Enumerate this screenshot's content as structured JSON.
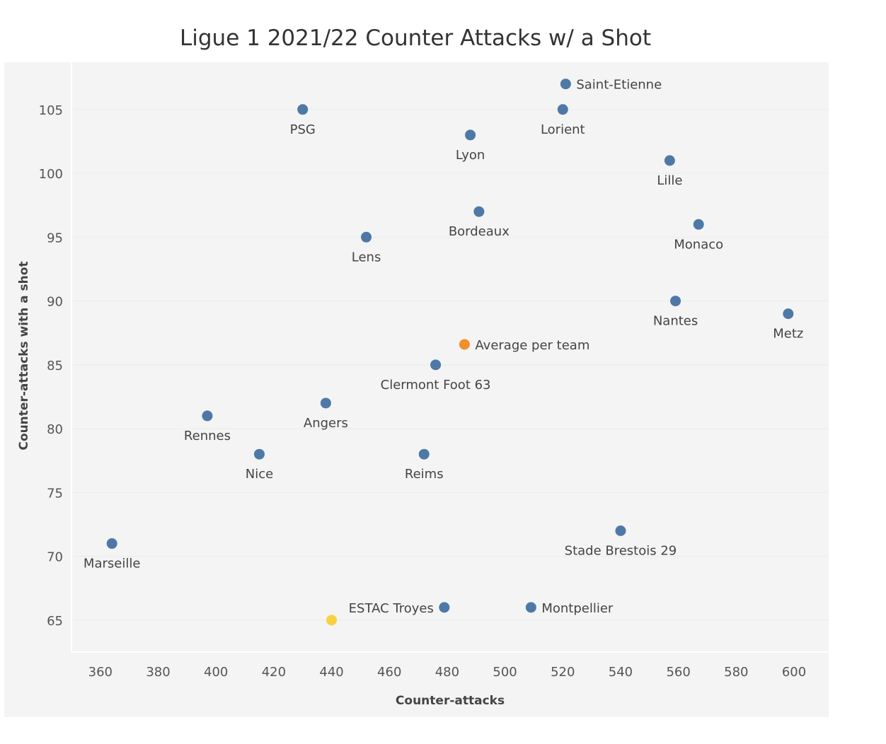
{
  "chart_data": {
    "type": "scatter",
    "title": "Ligue 1 2021/22 Counter Attacks w/ a Shot",
    "xlabel": "Counter-attacks",
    "ylabel": "Counter-attacks with a shot",
    "xlim": [
      350,
      612
    ],
    "ylim": [
      62.5,
      108.7
    ],
    "x_ticks": [
      360,
      380,
      400,
      420,
      440,
      460,
      480,
      500,
      520,
      540,
      560,
      580,
      600
    ],
    "y_ticks": [
      65,
      70,
      75,
      80,
      85,
      90,
      95,
      100,
      105
    ],
    "grid": "horizontal",
    "colors": {
      "team": "#4e79a7",
      "average": "#f28e2b",
      "highlight": "#f7d23e",
      "background": "#f4f4f4"
    },
    "points": [
      {
        "label": "Saint-Etienne",
        "x": 521,
        "y": 107,
        "kind": "team",
        "label_pos": "right"
      },
      {
        "label": "PSG",
        "x": 430,
        "y": 105,
        "kind": "team",
        "label_pos": "below"
      },
      {
        "label": "Lorient",
        "x": 520,
        "y": 105,
        "kind": "team",
        "label_pos": "below"
      },
      {
        "label": "Lyon",
        "x": 488,
        "y": 103,
        "kind": "team",
        "label_pos": "below"
      },
      {
        "label": "Lille",
        "x": 557,
        "y": 101,
        "kind": "team",
        "label_pos": "below"
      },
      {
        "label": "Bordeaux",
        "x": 491,
        "y": 97,
        "kind": "team",
        "label_pos": "below"
      },
      {
        "label": "Monaco",
        "x": 567,
        "y": 96,
        "kind": "team",
        "label_pos": "below"
      },
      {
        "label": "Lens",
        "x": 452,
        "y": 95,
        "kind": "team",
        "label_pos": "below"
      },
      {
        "label": "Nantes",
        "x": 559,
        "y": 90,
        "kind": "team",
        "label_pos": "below"
      },
      {
        "label": "Metz",
        "x": 598,
        "y": 89,
        "kind": "team",
        "label_pos": "below"
      },
      {
        "label": "Average per team",
        "x": 486,
        "y": 86.6,
        "kind": "average",
        "label_pos": "right"
      },
      {
        "label": "Clermont Foot 63",
        "x": 476,
        "y": 85,
        "kind": "team",
        "label_pos": "below"
      },
      {
        "label": "Angers",
        "x": 438,
        "y": 82,
        "kind": "team",
        "label_pos": "below"
      },
      {
        "label": "Rennes",
        "x": 397,
        "y": 81,
        "kind": "team",
        "label_pos": "below"
      },
      {
        "label": "Nice",
        "x": 415,
        "y": 78,
        "kind": "team",
        "label_pos": "below"
      },
      {
        "label": "Reims",
        "x": 472,
        "y": 78,
        "kind": "team",
        "label_pos": "below"
      },
      {
        "label": "Stade Brestois 29",
        "x": 540,
        "y": 72,
        "kind": "team",
        "label_pos": "below"
      },
      {
        "label": "Marseille",
        "x": 364,
        "y": 71,
        "kind": "team",
        "label_pos": "below"
      },
      {
        "label": "ESTAC Troyes",
        "x": 479,
        "y": 66,
        "kind": "team",
        "label_pos": "left"
      },
      {
        "label": "Montpellier",
        "x": 509,
        "y": 66,
        "kind": "team",
        "label_pos": "right"
      },
      {
        "label": "",
        "x": 440,
        "y": 65,
        "kind": "highlight",
        "label_pos": "none"
      }
    ]
  }
}
